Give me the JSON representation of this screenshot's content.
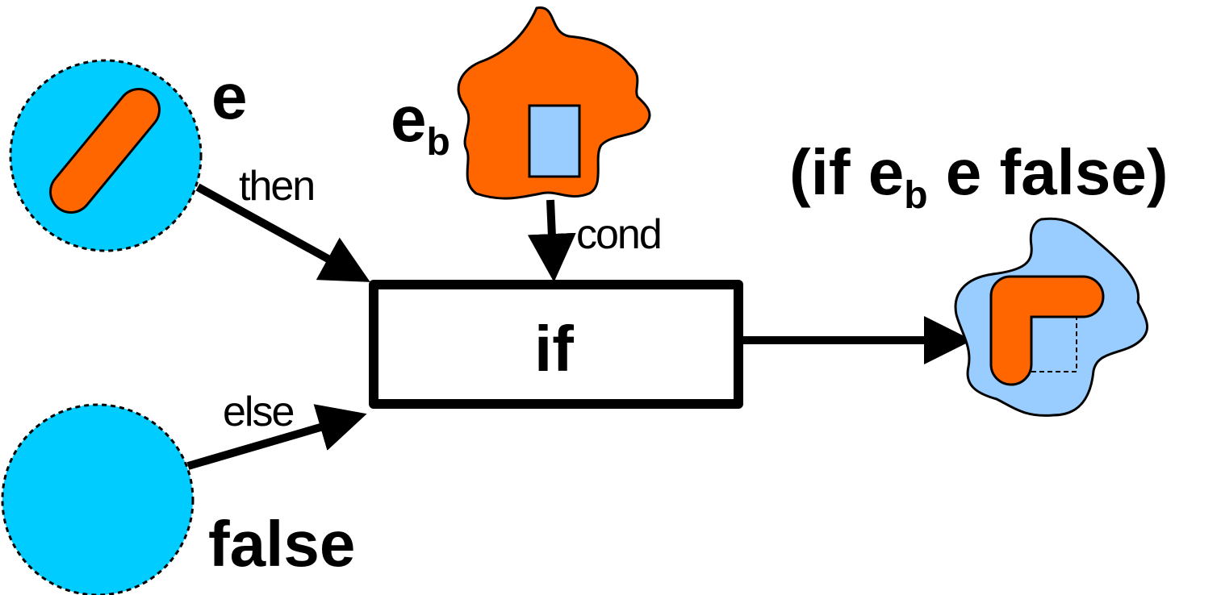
{
  "nodes": {
    "then_input": {
      "label": "e"
    },
    "else_input": {
      "label": "false"
    },
    "cond_input": {
      "label": "e",
      "label_sub": "b"
    },
    "if_box": {
      "label": "if"
    }
  },
  "edges": {
    "then": "then",
    "else": "else",
    "cond": "cond"
  },
  "result": {
    "expr_open": "(if e",
    "expr_sub": "b",
    "expr_close": " e false)"
  },
  "colors": {
    "cyan": "#00CCFF",
    "orange": "#FF6600",
    "light_blue": "#99CCFF",
    "stroke": "#000000"
  }
}
